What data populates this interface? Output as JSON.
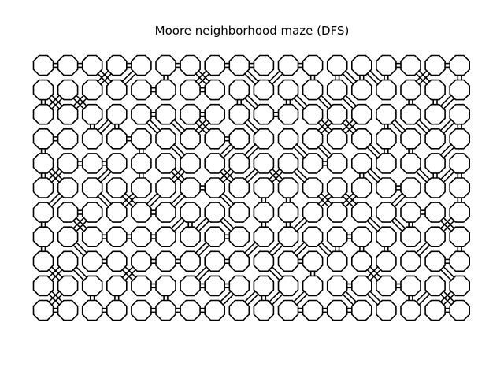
{
  "figure": {
    "title": "Moore neighborhood maze (DFS)",
    "stroke_color": "#000000",
    "background_color": "#ffffff"
  },
  "maze": {
    "cols": 18,
    "rows": 11,
    "connectivity": "moore",
    "algorithm": "DFS",
    "cell_shape": "octagon",
    "random_seed": 7
  }
}
